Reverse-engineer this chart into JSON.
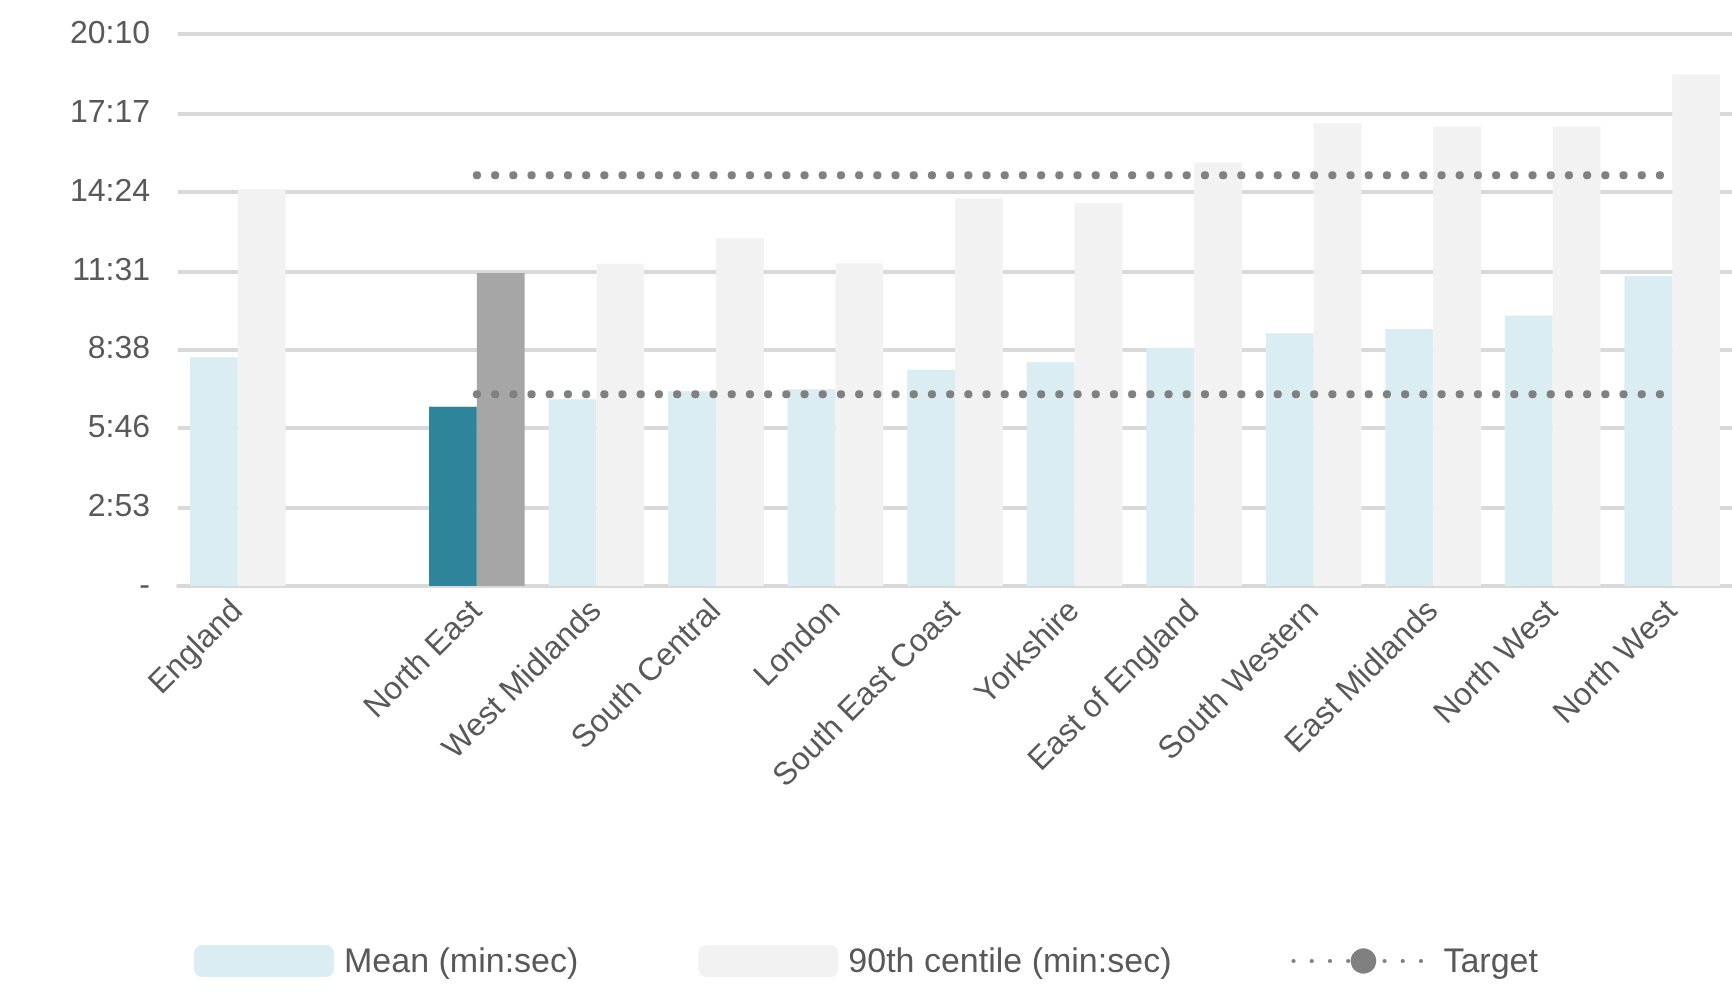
{
  "chart_data": {
    "type": "bar",
    "categories": [
      "England",
      null,
      "North East",
      "West Midlands",
      "South Central",
      "London",
      "South East Coast",
      "Yorkshire",
      "East of England",
      "South Western",
      "East Midlands",
      "North West",
      "North West"
    ],
    "series": [
      {
        "name": "Mean (min:sec)",
        "color": "#daedf3",
        "colors": [
          "#daedf3",
          "#daedf3",
          "#2e849b",
          "#daedf3",
          "#daedf3",
          "#daedf3",
          "#daedf3",
          "#daedf3",
          "#daedf3",
          "#daedf3",
          "#daedf3",
          "#daedf3",
          "#daedf3"
        ],
        "values": [
          501,
          null,
          393,
          409,
          427,
          431,
          474,
          491,
          522,
          554,
          563,
          593,
          680
        ]
      },
      {
        "name": "90th centile (min:sec)",
        "color": "#f2f2f2",
        "colors": [
          "#f2f2f2",
          "#f2f2f2",
          "#a6a6a6",
          "#f2f2f2",
          "#f2f2f2",
          "#f2f2f2",
          "#f2f2f2",
          "#f2f2f2",
          "#f2f2f2",
          "#f2f2f2",
          "#f2f2f2",
          "#f2f2f2",
          "#f2f2f2"
        ],
        "values": [
          870,
          null,
          686,
          706,
          762,
          707,
          849,
          839,
          928,
          1014,
          1007,
          1007,
          1121
        ]
      },
      {
        "name": "Target",
        "type": "line",
        "color": "#808080",
        "line_style": "dotted",
        "values": [
          null,
          null,
          900,
          900,
          900,
          900,
          900,
          900,
          900,
          900,
          900,
          900,
          900
        ]
      },
      {
        "type": "line",
        "color": "#808080",
        "line_style": "dotted",
        "values": [
          null,
          null,
          420,
          420,
          420,
          420,
          420,
          420,
          420,
          420,
          420,
          420,
          420
        ]
      }
    ],
    "ylim": [
      0,
      1209.6
    ],
    "yticks": [
      {
        "value": 0,
        "label": "-"
      },
      {
        "value": 172.8,
        "label": "2:53"
      },
      {
        "value": 345.6,
        "label": "5:46"
      },
      {
        "value": 518.4,
        "label": "8:38"
      },
      {
        "value": 691.2,
        "label": "11:31"
      },
      {
        "value": 864,
        "label": "14:24"
      },
      {
        "value": 1036.8,
        "label": "17:17"
      },
      {
        "value": 1209.6,
        "label": "20:10"
      }
    ],
    "grid": "y",
    "legend": "bottom",
    "marker": "none"
  }
}
